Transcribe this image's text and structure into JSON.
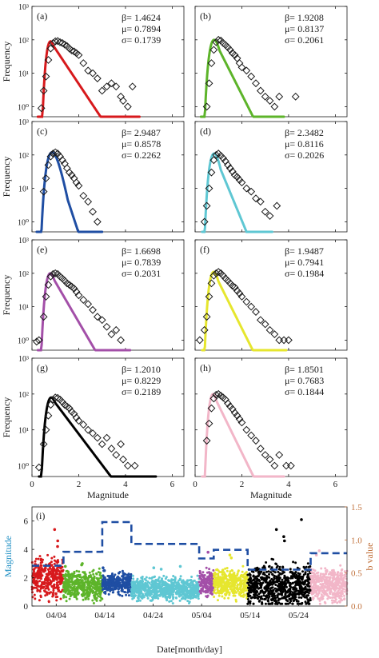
{
  "chart_data": [
    {
      "panel": "a",
      "label": "(a)",
      "type": "scatter",
      "color": "#d7191c",
      "ylabel": "Frequency",
      "xlabel": "",
      "stats": [
        "β= 1.4624",
        "μ= 0.7894",
        "σ= 0.1739"
      ],
      "yscale": "log",
      "xlim": [
        0,
        6.5
      ],
      "ylim": [
        0.5,
        1000
      ],
      "yticks": [
        "10⁰",
        "10¹",
        "10²",
        "10³"
      ],
      "xticks": [],
      "fit": {
        "beta": 1.4624,
        "mu": 0.7894,
        "sigma": 0.1739,
        "peak": 90,
        "xmin": 0.25,
        "xmax": 4.6
      },
      "points": [
        [
          0.4,
          0.9
        ],
        [
          0.5,
          3
        ],
        [
          0.6,
          8
        ],
        [
          0.7,
          25
        ],
        [
          0.8,
          55
        ],
        [
          0.9,
          80
        ],
        [
          1.0,
          90
        ],
        [
          1.1,
          92
        ],
        [
          1.2,
          85
        ],
        [
          1.3,
          80
        ],
        [
          1.4,
          72
        ],
        [
          1.5,
          65
        ],
        [
          1.6,
          55
        ],
        [
          1.7,
          48
        ],
        [
          1.8,
          45
        ],
        [
          1.9,
          40
        ],
        [
          2.0,
          35
        ],
        [
          2.2,
          20
        ],
        [
          2.4,
          12
        ],
        [
          2.6,
          10
        ],
        [
          2.8,
          7
        ],
        [
          3.0,
          3
        ],
        [
          3.2,
          4
        ],
        [
          3.4,
          5
        ],
        [
          3.6,
          4
        ],
        [
          3.8,
          2
        ],
        [
          3.9,
          1.5
        ],
        [
          4.1,
          1
        ],
        [
          4.3,
          4
        ]
      ]
    },
    {
      "panel": "b",
      "label": "(b)",
      "type": "scatter",
      "color": "#5db42a",
      "ylabel": "",
      "xlabel": "",
      "stats": [
        "β= 1.9208",
        "μ= 0.8137",
        "σ= 0.2061"
      ],
      "yscale": "log",
      "xlim": [
        0,
        6.5
      ],
      "ylim": [
        0.5,
        1000
      ],
      "yticks": [],
      "xticks": [],
      "fit": {
        "beta": 1.9208,
        "mu": 0.8137,
        "sigma": 0.2061,
        "peak": 100,
        "xmin": 0.25,
        "xmax": 3.8
      },
      "points": [
        [
          0.5,
          1
        ],
        [
          0.6,
          5
        ],
        [
          0.7,
          20
        ],
        [
          0.8,
          50
        ],
        [
          0.9,
          85
        ],
        [
          1.0,
          100
        ],
        [
          1.1,
          95
        ],
        [
          1.2,
          80
        ],
        [
          1.3,
          70
        ],
        [
          1.4,
          60
        ],
        [
          1.5,
          50
        ],
        [
          1.6,
          40
        ],
        [
          1.7,
          35
        ],
        [
          1.8,
          28
        ],
        [
          1.9,
          20
        ],
        [
          2.0,
          15
        ],
        [
          2.2,
          12
        ],
        [
          2.4,
          8
        ],
        [
          2.6,
          5
        ],
        [
          2.8,
          3
        ],
        [
          3.0,
          2
        ],
        [
          3.2,
          1.5
        ],
        [
          3.4,
          1
        ],
        [
          3.6,
          2
        ],
        [
          4.3,
          2
        ]
      ]
    },
    {
      "panel": "c",
      "label": "(c)",
      "type": "scatter",
      "color": "#1f4ea3",
      "ylabel": "Frequency",
      "xlabel": "",
      "stats": [
        "β= 2.9487",
        "μ= 0.8578",
        "σ= 0.2262"
      ],
      "yscale": "log",
      "xlim": [
        0,
        6.5
      ],
      "ylim": [
        0.5,
        1000
      ],
      "yticks": [
        "10⁰",
        "10¹",
        "10²",
        "10³"
      ],
      "xticks": [],
      "fit": {
        "beta": 2.9487,
        "mu": 0.8578,
        "sigma": 0.2262,
        "peak": 120,
        "xmin": 0.2,
        "xmax": 3.0
      },
      "points": [
        [
          0.5,
          8
        ],
        [
          0.6,
          20
        ],
        [
          0.7,
          50
        ],
        [
          0.8,
          90
        ],
        [
          0.9,
          110
        ],
        [
          1.0,
          120
        ],
        [
          1.1,
          110
        ],
        [
          1.2,
          90
        ],
        [
          1.3,
          70
        ],
        [
          1.4,
          55
        ],
        [
          1.5,
          40
        ],
        [
          1.6,
          30
        ],
        [
          1.7,
          25
        ],
        [
          1.8,
          20
        ],
        [
          1.9,
          15
        ],
        [
          2.0,
          12
        ],
        [
          2.2,
          6
        ],
        [
          2.4,
          4
        ],
        [
          2.6,
          2
        ],
        [
          2.8,
          1
        ]
      ]
    },
    {
      "panel": "d",
      "label": "(d)",
      "type": "scatter",
      "color": "#5fc7d3",
      "ylabel": "",
      "xlabel": "",
      "stats": [
        "β= 2.3482",
        "μ= 0.8116",
        "σ= 0.2026"
      ],
      "yscale": "log",
      "xlim": [
        0,
        6.5
      ],
      "ylim": [
        0.5,
        1000
      ],
      "yticks": [],
      "xticks": [],
      "fit": {
        "beta": 2.3482,
        "mu": 0.8116,
        "sigma": 0.2026,
        "peak": 110,
        "xmin": 0.3,
        "xmax": 3.3
      },
      "points": [
        [
          0.4,
          1
        ],
        [
          0.5,
          3
        ],
        [
          0.6,
          10
        ],
        [
          0.7,
          30
        ],
        [
          0.8,
          70
        ],
        [
          0.9,
          100
        ],
        [
          1.0,
          110
        ],
        [
          1.1,
          95
        ],
        [
          1.2,
          80
        ],
        [
          1.3,
          65
        ],
        [
          1.4,
          50
        ],
        [
          1.5,
          40
        ],
        [
          1.6,
          32
        ],
        [
          1.7,
          25
        ],
        [
          1.8,
          22
        ],
        [
          1.9,
          18
        ],
        [
          2.0,
          15
        ],
        [
          2.2,
          10
        ],
        [
          2.4,
          8
        ],
        [
          2.6,
          5
        ],
        [
          2.8,
          4
        ],
        [
          3.0,
          2
        ],
        [
          3.2,
          1.5
        ],
        [
          3.5,
          3
        ]
      ]
    },
    {
      "panel": "e",
      "label": "(e)",
      "type": "scatter",
      "color": "#a34fa8",
      "ylabel": "Frequency",
      "xlabel": "",
      "stats": [
        "β= 1.6698",
        "μ= 0.7839",
        "σ= 0.2031"
      ],
      "yscale": "log",
      "xlim": [
        0,
        6.5
      ],
      "ylim": [
        0.5,
        1000
      ],
      "yticks": [
        "10⁰",
        "10¹",
        "10²",
        "10³"
      ],
      "xticks": [],
      "fit": {
        "beta": 1.6698,
        "mu": 0.7839,
        "sigma": 0.2031,
        "peak": 100,
        "xmin": 0.25,
        "xmax": 4.2
      },
      "points": [
        [
          0.2,
          0.9
        ],
        [
          0.3,
          1
        ],
        [
          0.5,
          5
        ],
        [
          0.6,
          20
        ],
        [
          0.7,
          45
        ],
        [
          0.8,
          80
        ],
        [
          0.9,
          95
        ],
        [
          1.0,
          100
        ],
        [
          1.1,
          95
        ],
        [
          1.2,
          80
        ],
        [
          1.3,
          70
        ],
        [
          1.4,
          60
        ],
        [
          1.5,
          50
        ],
        [
          1.6,
          45
        ],
        [
          1.7,
          40
        ],
        [
          1.8,
          35
        ],
        [
          1.9,
          28
        ],
        [
          2.0,
          22
        ],
        [
          2.2,
          16
        ],
        [
          2.4,
          12
        ],
        [
          2.6,
          8
        ],
        [
          2.8,
          5
        ],
        [
          3.0,
          4
        ],
        [
          3.2,
          2.5
        ],
        [
          3.4,
          1.5
        ],
        [
          3.6,
          2
        ],
        [
          3.8,
          1
        ]
      ]
    },
    {
      "panel": "f",
      "label": "(f)",
      "type": "scatter",
      "color": "#e6e62e",
      "ylabel": "",
      "xlabel": "",
      "stats": [
        "β= 1.9487",
        "μ= 0.7941",
        "σ= 0.1984"
      ],
      "yscale": "log",
      "xlim": [
        0,
        6.5
      ],
      "ylim": [
        0.5,
        1000
      ],
      "yticks": [],
      "xticks": [],
      "fit": {
        "beta": 1.9487,
        "mu": 0.7941,
        "sigma": 0.1984,
        "peak": 110,
        "xmin": 0.3,
        "xmax": 3.9
      },
      "points": [
        [
          0.2,
          1
        ],
        [
          0.4,
          2
        ],
        [
          0.5,
          5
        ],
        [
          0.6,
          20
        ],
        [
          0.7,
          50
        ],
        [
          0.8,
          85
        ],
        [
          0.9,
          100
        ],
        [
          1.0,
          110
        ],
        [
          1.1,
          100
        ],
        [
          1.2,
          85
        ],
        [
          1.3,
          70
        ],
        [
          1.4,
          60
        ],
        [
          1.5,
          50
        ],
        [
          1.6,
          42
        ],
        [
          1.7,
          38
        ],
        [
          1.8,
          30
        ],
        [
          1.9,
          25
        ],
        [
          2.0,
          20
        ],
        [
          2.2,
          14
        ],
        [
          2.4,
          10
        ],
        [
          2.6,
          7
        ],
        [
          2.8,
          4
        ],
        [
          3.0,
          3
        ],
        [
          3.2,
          2
        ],
        [
          3.4,
          1.5
        ],
        [
          3.6,
          1
        ],
        [
          3.8,
          1
        ],
        [
          4.0,
          1
        ]
      ]
    },
    {
      "panel": "g",
      "label": "(g)",
      "type": "scatter",
      "color": "#000000",
      "ylabel": "Frequency",
      "xlabel": "Magnitude",
      "stats": [
        "β= 1.2010",
        "μ= 0.8229",
        "σ= 0.2189"
      ],
      "yscale": "log",
      "xlim": [
        0,
        6.5
      ],
      "ylim": [
        0.5,
        1000
      ],
      "yticks": [
        "10⁰",
        "10¹",
        "10²",
        "10³"
      ],
      "xticks": [
        "0",
        "2",
        "4",
        "6"
      ],
      "fit": {
        "beta": 1.201,
        "mu": 0.8229,
        "sigma": 0.2189,
        "peak": 80,
        "xmin": 0.3,
        "xmax": 5.3
      },
      "points": [
        [
          0.3,
          0.9
        ],
        [
          0.5,
          4
        ],
        [
          0.6,
          10
        ],
        [
          0.7,
          25
        ],
        [
          0.8,
          50
        ],
        [
          0.9,
          70
        ],
        [
          1.0,
          80
        ],
        [
          1.1,
          78
        ],
        [
          1.2,
          70
        ],
        [
          1.3,
          60
        ],
        [
          1.4,
          50
        ],
        [
          1.5,
          45
        ],
        [
          1.6,
          40
        ],
        [
          1.7,
          32
        ],
        [
          1.8,
          28
        ],
        [
          1.9,
          22
        ],
        [
          2.0,
          18
        ],
        [
          2.2,
          14
        ],
        [
          2.4,
          10
        ],
        [
          2.6,
          8
        ],
        [
          2.8,
          6
        ],
        [
          3.0,
          4
        ],
        [
          3.2,
          6
        ],
        [
          3.4,
          3
        ],
        [
          3.6,
          2
        ],
        [
          3.8,
          4
        ],
        [
          3.9,
          1.5
        ],
        [
          4.1,
          1
        ],
        [
          4.4,
          1
        ]
      ]
    },
    {
      "panel": "h",
      "label": "(h)",
      "type": "scatter",
      "color": "#f2b6c8",
      "ylabel": "",
      "xlabel": "Magnitude",
      "stats": [
        "β= 1.8501",
        "μ= 0.7683",
        "σ= 0.1844"
      ],
      "yscale": "log",
      "xlim": [
        0,
        6.5
      ],
      "ylim": [
        0.5,
        1000
      ],
      "yticks": [],
      "xticks": [
        "0",
        "2",
        "4",
        "6"
      ],
      "fit": {
        "beta": 1.8501,
        "mu": 0.7683,
        "sigma": 0.1844,
        "peak": 100,
        "xmin": 0.3,
        "xmax": 3.8
      },
      "points": [
        [
          0.5,
          5
        ],
        [
          0.6,
          15
        ],
        [
          0.7,
          40
        ],
        [
          0.8,
          75
        ],
        [
          0.9,
          95
        ],
        [
          1.0,
          100
        ],
        [
          1.1,
          90
        ],
        [
          1.2,
          80
        ],
        [
          1.3,
          70
        ],
        [
          1.4,
          55
        ],
        [
          1.5,
          45
        ],
        [
          1.6,
          38
        ],
        [
          1.7,
          30
        ],
        [
          1.8,
          25
        ],
        [
          1.9,
          20
        ],
        [
          2.0,
          16
        ],
        [
          2.2,
          10
        ],
        [
          2.4,
          7
        ],
        [
          2.6,
          5
        ],
        [
          2.8,
          3
        ],
        [
          3.0,
          2
        ],
        [
          3.2,
          1.5
        ],
        [
          3.4,
          1
        ],
        [
          3.6,
          2
        ],
        [
          3.9,
          1
        ],
        [
          4.1,
          1
        ]
      ]
    },
    {
      "panel": "i",
      "label": "(i)",
      "type": "scatter",
      "ylabel": "Magnitude",
      "ylabel_right": "b value",
      "xlabel": "Date[month/day]",
      "xlim": [
        0,
        65
      ],
      "ylim": [
        0,
        7
      ],
      "ylim_right": [
        0,
        1.5
      ],
      "yticks": [
        "0",
        "2",
        "4",
        "6"
      ],
      "yticks_right": [
        "0.0",
        "0.5",
        "1.0",
        "1.5"
      ],
      "xticks": [
        {
          "x": 5,
          "label": "04/04"
        },
        {
          "x": 15,
          "label": "04/14"
        },
        {
          "x": 25,
          "label": "04/24"
        },
        {
          "x": 35,
          "label": "05/04"
        },
        {
          "x": 45,
          "label": "05/14"
        },
        {
          "x": 55,
          "label": "05/24"
        }
      ],
      "segments": [
        {
          "start": 0,
          "end": 6.5,
          "color": "#d7191c",
          "base": 2.0,
          "spread": 2.4,
          "peaks": [
            5.4,
            4.6,
            4.2
          ]
        },
        {
          "start": 6.5,
          "end": 14.5,
          "color": "#5db42a",
          "base": 1.4,
          "spread": 1.8,
          "peaks": [
            3.0,
            2.9,
            2.8
          ]
        },
        {
          "start": 14.5,
          "end": 20.5,
          "color": "#1f4ea3",
          "base": 1.6,
          "spread": 1.2,
          "peaks": [
            2.7,
            2.5
          ]
        },
        {
          "start": 20.5,
          "end": 34.5,
          "color": "#5fc7d3",
          "base": 1.2,
          "spread": 1.4,
          "peaks": [
            2.8,
            2.7,
            2.6
          ]
        },
        {
          "start": 34.5,
          "end": 37.5,
          "color": "#a34fa8",
          "base": 1.6,
          "spread": 1.6,
          "peaks": [
            3.8
          ]
        },
        {
          "start": 37.5,
          "end": 44.5,
          "color": "#e6e62e",
          "base": 1.6,
          "spread": 1.8,
          "peaks": [
            3.6,
            3.4
          ]
        },
        {
          "start": 44.5,
          "end": 57.5,
          "color": "#000000",
          "base": 1.4,
          "spread": 2.6,
          "peaks": [
            6.1,
            5.4,
            4.9,
            4.6
          ]
        },
        {
          "start": 57.5,
          "end": 65,
          "color": "#f2b6c8",
          "base": 1.5,
          "spread": 2.0,
          "peaks": [
            3.9,
            3.6
          ]
        }
      ],
      "b_value": {
        "color": "#1f4ea3",
        "steps": [
          [
            0,
            6.5,
            0.61
          ],
          [
            6.5,
            14.5,
            0.82
          ],
          [
            14.5,
            20.5,
            1.27
          ],
          [
            20.5,
            34.5,
            0.94
          ],
          [
            34.5,
            37.5,
            0.72
          ],
          [
            37.5,
            44.5,
            0.85
          ],
          [
            44.5,
            57.5,
            0.55
          ],
          [
            57.5,
            65,
            0.8
          ]
        ]
      }
    }
  ]
}
